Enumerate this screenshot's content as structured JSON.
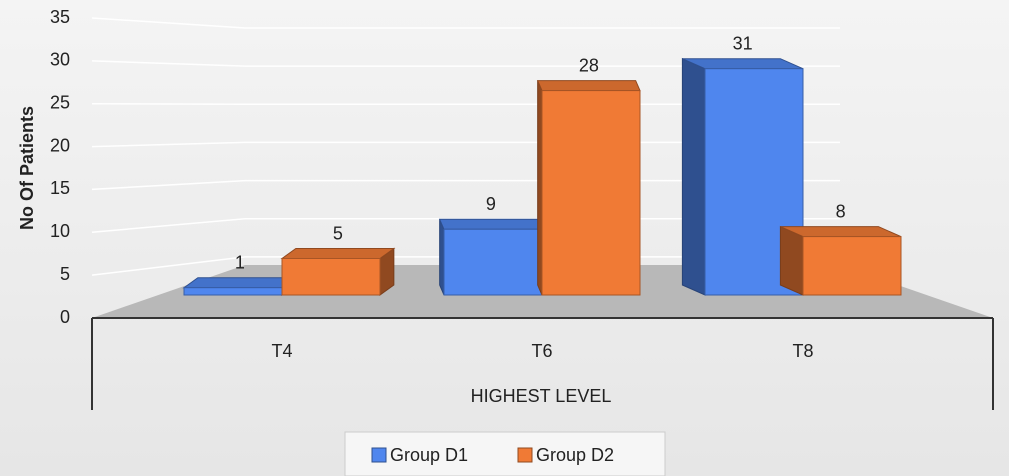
{
  "chart_data": {
    "type": "bar3d",
    "x_label": "HIGHEST LEVEL",
    "y_label": "No Of Patients",
    "categories": [
      "T4",
      "T6",
      "T8"
    ],
    "series": [
      {
        "name": "Group D1",
        "color": "#4f86ee",
        "values": [
          1,
          9,
          31
        ]
      },
      {
        "name": "Group D2",
        "color": "#f07a35",
        "values": [
          5,
          28,
          8
        ]
      }
    ],
    "ylim": [
      0,
      35
    ],
    "yticks": [
      0,
      5,
      10,
      15,
      20,
      25,
      30,
      35
    ],
    "grid": true,
    "legend": "bottom"
  }
}
